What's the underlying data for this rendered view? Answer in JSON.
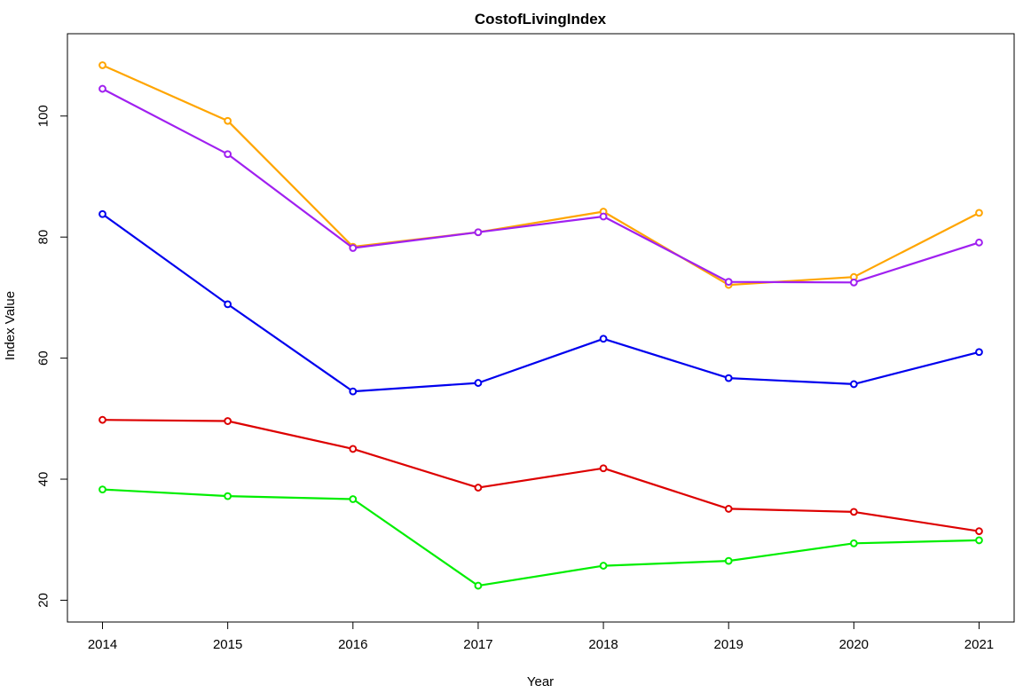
{
  "chart_data": {
    "type": "line",
    "title": "CostofLivingIndex",
    "xlabel": "Year",
    "ylabel": "Index Value",
    "x": [
      2014,
      2015,
      2016,
      2017,
      2018,
      2019,
      2020,
      2021
    ],
    "x_ticks": [
      "2014",
      "2015",
      "2016",
      "2017",
      "2018",
      "2019",
      "2020",
      "2021"
    ],
    "y_ticks": [
      20,
      40,
      60,
      80,
      100
    ],
    "ylim": [
      20,
      110
    ],
    "grid": false,
    "legend": "none",
    "series": [
      {
        "color": "#FFA500",
        "values": [
          108.4,
          99.2,
          78.4,
          80.8,
          84.2,
          72.1,
          73.4,
          84.0
        ]
      },
      {
        "color": "#A020F0",
        "values": [
          104.5,
          93.7,
          78.2,
          80.8,
          83.4,
          72.6,
          72.5,
          79.1
        ]
      },
      {
        "color": "#0000EE",
        "values": [
          83.8,
          68.9,
          54.5,
          55.9,
          63.2,
          56.7,
          55.7,
          61.0
        ]
      },
      {
        "color": "#DD0000",
        "values": [
          49.8,
          49.6,
          45.0,
          38.6,
          41.8,
          35.1,
          34.6,
          31.4
        ]
      },
      {
        "color": "#00EE00",
        "values": [
          38.3,
          37.2,
          36.7,
          22.4,
          25.7,
          26.5,
          29.4,
          29.9
        ]
      }
    ]
  }
}
